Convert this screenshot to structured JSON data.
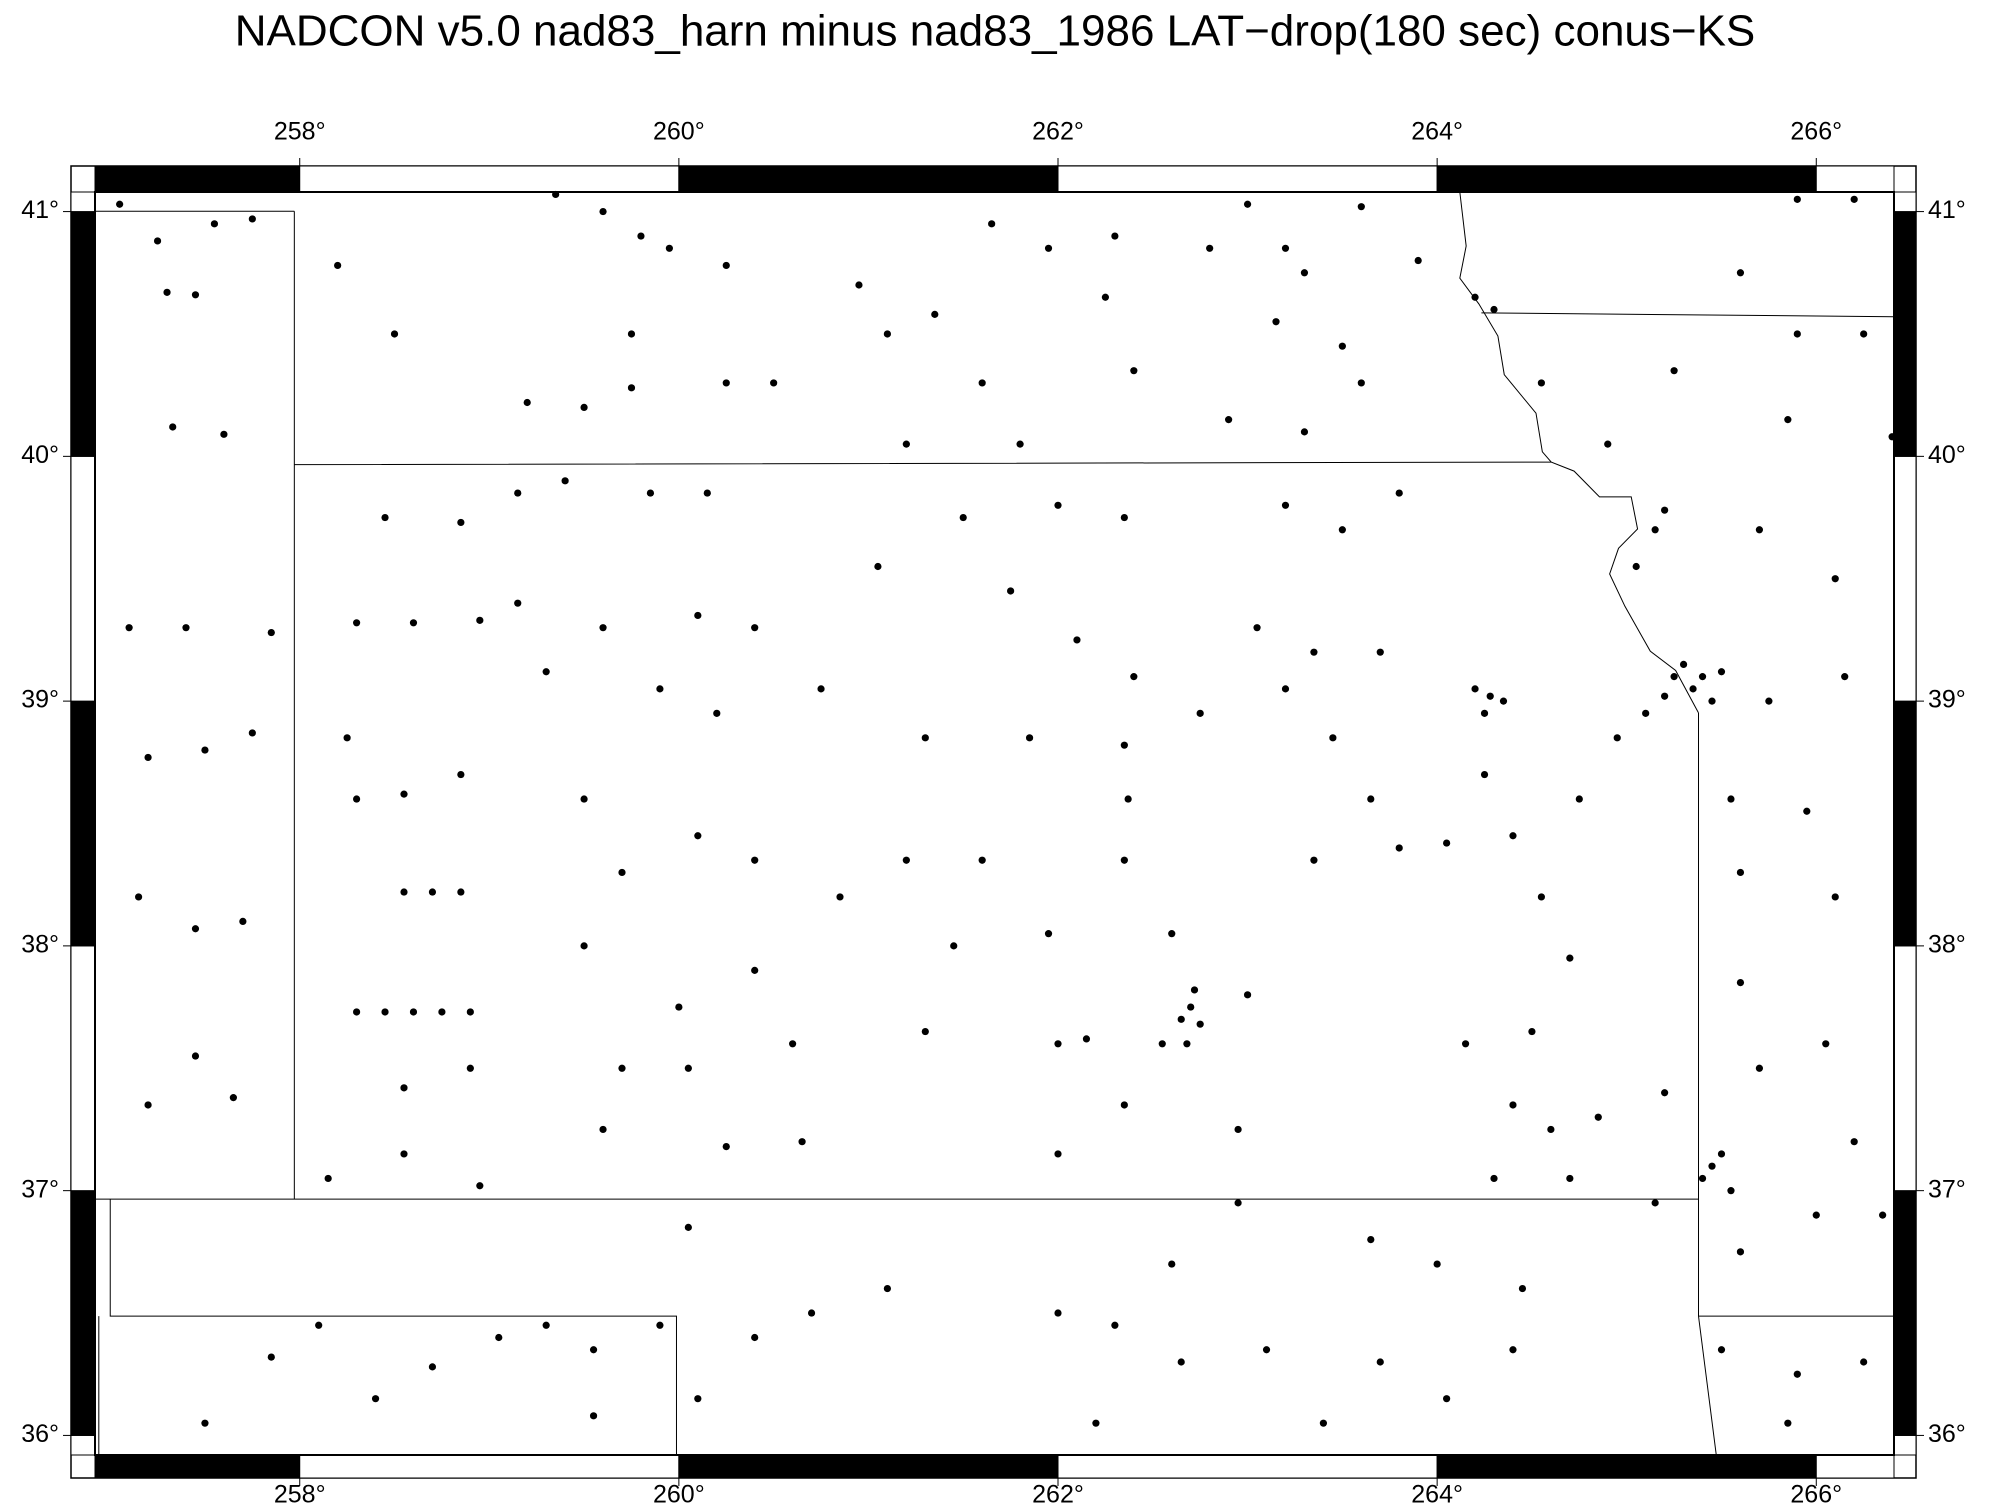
{
  "chart_data": {
    "type": "scatter",
    "title": "NADCON v5.0 nad83_harn minus nad83_1986 LAT−drop(180 sec) conus−KS",
    "color": "#000000",
    "xlim": [
      256.92,
      266.41
    ],
    "ylim": [
      35.92,
      41.08
    ],
    "xticks": [
      {
        "value": 258,
        "label": "258°"
      },
      {
        "value": 260,
        "label": "260°"
      },
      {
        "value": 262,
        "label": "262°"
      },
      {
        "value": 264,
        "label": "264°"
      },
      {
        "value": 266,
        "label": "266°"
      }
    ],
    "yticks": [
      {
        "value": 36,
        "label": "36°"
      },
      {
        "value": 37,
        "label": "37°"
      },
      {
        "value": 38,
        "label": "38°"
      },
      {
        "value": 39,
        "label": "39°"
      },
      {
        "value": 40,
        "label": "40°"
      },
      {
        "value": 41,
        "label": "41°"
      }
    ],
    "x": [
      257.05,
      257.25,
      257.55,
      257.75,
      257.3,
      257.45,
      257.33,
      257.6,
      257.1,
      257.4,
      257.85,
      257.2,
      257.5,
      257.75,
      257.15,
      257.45,
      257.7,
      257.45,
      257.2,
      257.65,
      258.2,
      258.5,
      258.45,
      258.85,
      259.15,
      258.3,
      258.6,
      258.95,
      259.15,
      258.25,
      258.3,
      258.55,
      258.85,
      258.55,
      258.7,
      258.85,
      258.3,
      258.45,
      258.6,
      258.75,
      258.9,
      258.55,
      258.9,
      258.55,
      258.95,
      258.15,
      258.1,
      258.4,
      258.7,
      259.05,
      259.3,
      259.55,
      259.9,
      259.55,
      257.5,
      257.85,
      259.35,
      259.6,
      259.8,
      259.95,
      260.25,
      259.75,
      259.5,
      259.2,
      260.25,
      260.5,
      259.75,
      259.4,
      259.85,
      260.15,
      259.6,
      260.1,
      260.4,
      259.3,
      259.9,
      260.2,
      259.5,
      260.1,
      259.7,
      260.4,
      259.5,
      260.0,
      260.4,
      259.7,
      260.05,
      260.6,
      259.6,
      260.25,
      260.65,
      260.05,
      260.4,
      260.7,
      261.1,
      260.1,
      260.95,
      261.1,
      261.35,
      261.6,
      261.65,
      261.95,
      262.3,
      262.25,
      262.4,
      261.2,
      261.8,
      261.5,
      262.0,
      262.35,
      261.05,
      261.75,
      262.1,
      262.4,
      260.75,
      261.3,
      261.85,
      262.35,
      262.37,
      262.35,
      261.6,
      261.2,
      260.85,
      261.45,
      261.95,
      261.3,
      262.0,
      262.15,
      262.35,
      262.0,
      262.55,
      262.65,
      262.7,
      262.75,
      262.68,
      262.72,
      262.6,
      263.0,
      262.95,
      262.95,
      262.6,
      262.3,
      262.0,
      262.65,
      263.1,
      262.2,
      262.8,
      263.2,
      263.3,
      263.15,
      263.5,
      262.9,
      263.3,
      263.6,
      263.9,
      264.2,
      263.2,
      263.5,
      263.8,
      263.05,
      263.35,
      263.2,
      263.7,
      262.75,
      263.45,
      263.65,
      263.8,
      263.35,
      264.2,
      264.28,
      264.35,
      264.25,
      264.05,
      264.4,
      264.75,
      264.25,
      264.55,
      264.7,
      264.15,
      264.5,
      264.4,
      264.6,
      264.85,
      264.3,
      264.7,
      263.65,
      264.0,
      264.45,
      263.7,
      264.05,
      264.4,
      263.4,
      264.95,
      265.1,
      265.25,
      265.35,
      265.4,
      265.3,
      265.45,
      265.2,
      265.5,
      265.15,
      265.2,
      265.05,
      264.9,
      264.55,
      264.3,
      265.25,
      265.6,
      265.9,
      266.25,
      265.85,
      266.4,
      265.7,
      266.1,
      265.75,
      266.15,
      265.55,
      265.6,
      265.95,
      266.1,
      265.6,
      265.7,
      266.05,
      265.45,
      265.5,
      265.4,
      265.55,
      265.2,
      265.15,
      265.6,
      266.0,
      265.9,
      265.85,
      266.25,
      266.35,
      265.5,
      266.2,
      265.9,
      266.2,
      263.0,
      263.6
    ],
    "values": [
      41.03,
      40.88,
      40.95,
      40.97,
      40.67,
      40.66,
      40.12,
      40.09,
      39.3,
      39.3,
      39.28,
      38.77,
      38.8,
      38.87,
      38.2,
      38.07,
      38.1,
      37.55,
      37.35,
      37.38,
      40.78,
      40.5,
      39.75,
      39.73,
      39.85,
      39.32,
      39.32,
      39.33,
      39.4,
      38.85,
      38.6,
      38.62,
      38.7,
      38.22,
      38.22,
      38.22,
      37.73,
      37.73,
      37.73,
      37.73,
      37.73,
      37.42,
      37.5,
      37.15,
      37.02,
      37.05,
      36.45,
      36.15,
      36.28,
      36.4,
      36.45,
      36.35,
      36.45,
      36.08,
      36.05,
      36.32,
      41.07,
      41.0,
      40.9,
      40.85,
      40.78,
      40.5,
      40.2,
      40.22,
      40.3,
      40.3,
      40.28,
      39.9,
      39.85,
      39.85,
      39.3,
      39.35,
      39.3,
      39.12,
      39.05,
      38.95,
      38.6,
      38.45,
      38.3,
      38.35,
      38.0,
      37.75,
      37.9,
      37.5,
      37.5,
      37.6,
      37.25,
      37.18,
      37.2,
      36.85,
      36.4,
      36.5,
      36.6,
      36.15,
      40.7,
      40.5,
      40.58,
      40.3,
      40.95,
      40.85,
      40.9,
      40.65,
      40.35,
      40.05,
      40.05,
      39.75,
      39.8,
      39.75,
      39.55,
      39.45,
      39.25,
      39.1,
      39.05,
      38.85,
      38.85,
      38.82,
      38.6,
      38.35,
      38.35,
      38.35,
      38.2,
      38.0,
      38.05,
      37.65,
      37.6,
      37.62,
      37.35,
      37.15,
      37.6,
      37.7,
      37.75,
      37.68,
      37.6,
      37.82,
      38.05,
      37.8,
      37.25,
      36.95,
      36.7,
      36.45,
      36.5,
      36.3,
      36.35,
      36.05,
      40.85,
      40.85,
      40.75,
      40.55,
      40.45,
      40.15,
      40.1,
      40.3,
      40.8,
      40.65,
      39.8,
      39.7,
      39.85,
      39.3,
      39.2,
      39.05,
      39.2,
      38.95,
      38.85,
      38.6,
      38.4,
      38.35,
      39.05,
      39.02,
      39.0,
      38.95,
      38.42,
      38.45,
      38.6,
      38.7,
      38.2,
      37.95,
      37.6,
      37.65,
      37.35,
      37.25,
      37.3,
      37.05,
      37.05,
      36.8,
      36.7,
      36.6,
      36.3,
      36.15,
      36.35,
      36.05,
      38.85,
      38.95,
      39.1,
      39.05,
      39.1,
      39.15,
      39.0,
      39.02,
      39.12,
      39.7,
      39.78,
      39.55,
      40.05,
      40.3,
      40.6,
      40.35,
      40.75,
      40.5,
      40.5,
      40.15,
      40.08,
      39.7,
      39.5,
      39.0,
      39.1,
      38.6,
      38.3,
      38.55,
      38.2,
      37.85,
      37.5,
      37.6,
      37.1,
      37.15,
      37.05,
      37.0,
      37.4,
      36.95,
      36.75,
      36.9,
      36.25,
      36.05,
      36.3,
      36.9,
      36.35,
      37.2,
      41.05,
      41.05,
      41.03,
      41.02
    ]
  }
}
